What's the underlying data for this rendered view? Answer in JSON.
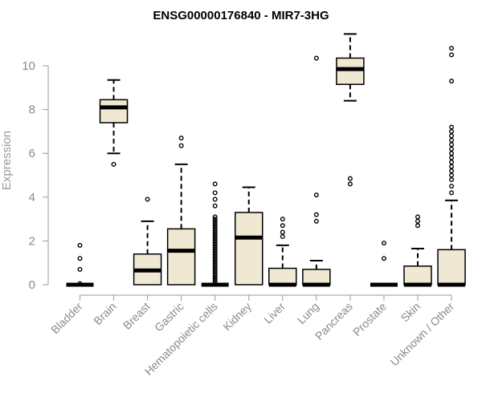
{
  "chart_data": {
    "type": "boxplot",
    "title": "ENSG00000176840 - MIR7-3HG",
    "xlabel": "",
    "ylabel": "Expression",
    "ylim": [
      0,
      11.5
    ],
    "yticks": [
      0,
      2,
      4,
      6,
      8,
      10
    ],
    "box_fill": "#efe8d2",
    "box_stroke": "#000000",
    "categories": [
      "Bladder",
      "Brain",
      "Breast",
      "Gastric",
      "Hematopoietic cells",
      "Kidney",
      "Liver",
      "Lung",
      "Pancreas",
      "Prostate",
      "Skin",
      "Unknown / Other"
    ],
    "boxes": [
      {
        "category": "Bladder",
        "q1": 0,
        "median": 0,
        "q3": 0,
        "whisker_low": 0,
        "whisker_high": 0,
        "outliers": [
          0.05,
          0.7,
          1.2,
          1.8
        ]
      },
      {
        "category": "Brain",
        "q1": 7.4,
        "median": 8.1,
        "q3": 8.45,
        "whisker_low": 6.0,
        "whisker_high": 9.35,
        "outliers": [
          5.5
        ]
      },
      {
        "category": "Breast",
        "q1": 0,
        "median": 0.65,
        "q3": 1.4,
        "whisker_low": 0,
        "whisker_high": 2.9,
        "outliers": [
          3.9
        ]
      },
      {
        "category": "Gastric",
        "q1": 0,
        "median": 1.55,
        "q3": 2.55,
        "whisker_low": 0,
        "whisker_high": 5.5,
        "outliers": [
          6.35,
          6.7
        ]
      },
      {
        "category": "Hematopoietic cells",
        "q1": 0,
        "median": 0,
        "q3": 0,
        "whisker_low": 0,
        "whisker_high": 0,
        "outliers": [
          0.1,
          0.2,
          0.3,
          0.4,
          0.5,
          0.6,
          0.7,
          0.8,
          0.9,
          1.0,
          1.1,
          1.2,
          1.3,
          1.4,
          1.5,
          1.6,
          1.7,
          1.8,
          1.9,
          2.0,
          2.1,
          2.2,
          2.3,
          2.4,
          2.5,
          2.6,
          2.7,
          2.8,
          2.9,
          3.0,
          3.1,
          3.6,
          3.9,
          4.2,
          4.6
        ]
      },
      {
        "category": "Kidney",
        "q1": 0,
        "median": 2.15,
        "q3": 3.3,
        "whisker_low": 0,
        "whisker_high": 4.45,
        "outliers": []
      },
      {
        "category": "Liver",
        "q1": 0,
        "median": 0,
        "q3": 0.75,
        "whisker_low": 0,
        "whisker_high": 1.8,
        "outliers": [
          2.2,
          2.4,
          2.7,
          3.0
        ]
      },
      {
        "category": "Lung",
        "q1": 0,
        "median": 0,
        "q3": 0.7,
        "whisker_low": 0,
        "whisker_high": 1.1,
        "outliers": [
          2.9,
          3.2,
          4.1,
          10.35
        ]
      },
      {
        "category": "Pancreas",
        "q1": 9.15,
        "median": 9.85,
        "q3": 10.35,
        "whisker_low": 8.4,
        "whisker_high": 11.45,
        "outliers": [
          4.6,
          4.85
        ]
      },
      {
        "category": "Prostate",
        "q1": 0,
        "median": 0,
        "q3": 0,
        "whisker_low": 0,
        "whisker_high": 0,
        "outliers": [
          1.2,
          1.9
        ]
      },
      {
        "category": "Skin",
        "q1": 0,
        "median": 0,
        "q3": 0.85,
        "whisker_low": 0,
        "whisker_high": 1.65,
        "outliers": [
          2.7,
          2.9,
          3.1
        ]
      },
      {
        "category": "Unknown / Other",
        "q1": 0,
        "median": 0,
        "q3": 1.6,
        "whisker_low": 0,
        "whisker_high": 3.85,
        "outliers": [
          4.2,
          4.5,
          4.8,
          5.0,
          5.2,
          5.4,
          5.6,
          5.8,
          6.0,
          6.2,
          6.4,
          6.6,
          6.8,
          7.0,
          7.2,
          9.3,
          10.5,
          10.8
        ]
      }
    ]
  }
}
